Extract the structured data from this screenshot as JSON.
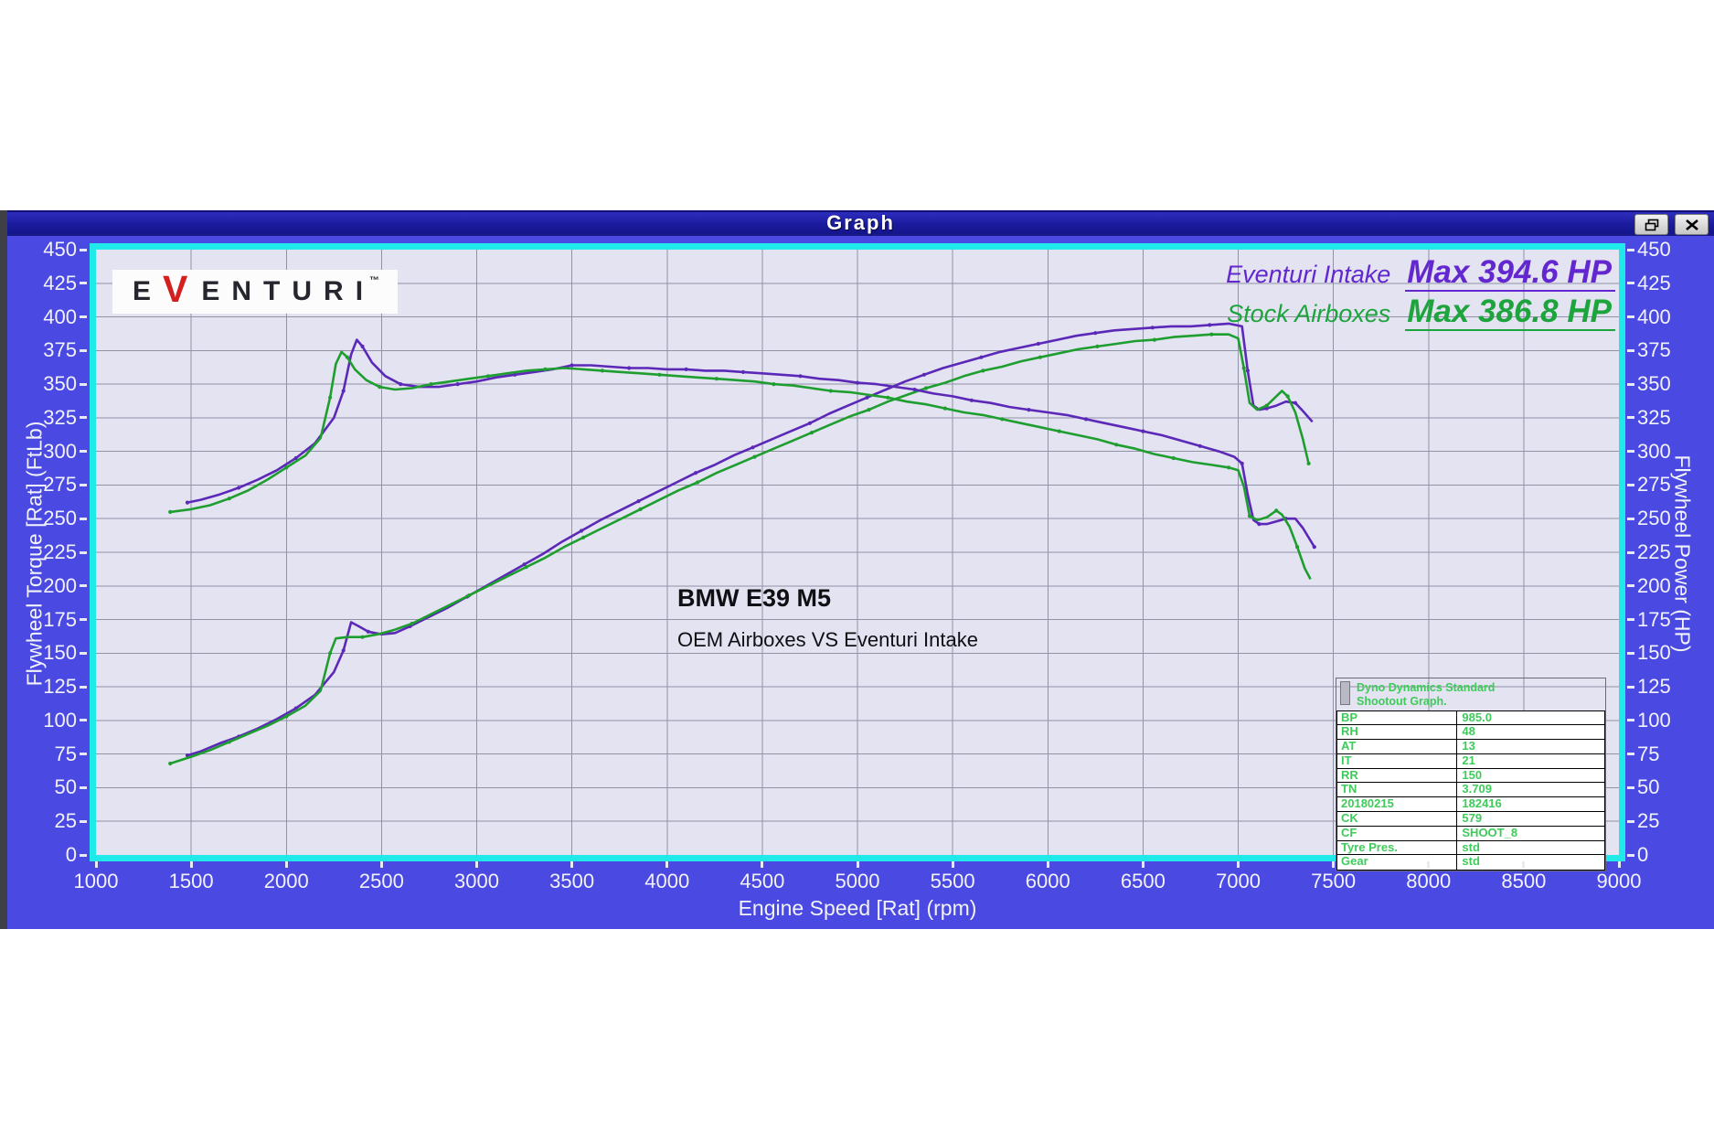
{
  "window": {
    "title": "Graph"
  },
  "logo": {
    "prefix": "E",
    "v": "V",
    "suffix": "ENTURI",
    "tm": "™"
  },
  "legend": [
    {
      "name": "Eventuri Intake",
      "max": "Max 394.6 HP",
      "color": "#6227cf"
    },
    {
      "name": "Stock Airboxes",
      "max": "Max 386.8 HP",
      "color": "#1da43c"
    }
  ],
  "annotations": {
    "model": "BMW E39 M5",
    "comparison": "OEM Airboxes VS Eventuri Intake"
  },
  "info_table": {
    "header_lines": [
      "Dyno Dynamics Standard",
      "Shootout Graph."
    ],
    "rows": [
      {
        "label": "BP",
        "value": "985.0"
      },
      {
        "label": "RH",
        "value": "48"
      },
      {
        "label": "AT",
        "value": "13"
      },
      {
        "label": "IT",
        "value": "21"
      },
      {
        "label": "RR",
        "value": "150"
      },
      {
        "label": "TN",
        "value": "3.709"
      },
      {
        "label": "20180215",
        "value": "182416"
      },
      {
        "label": "CK",
        "value": "579"
      },
      {
        "label": "CF",
        "value": "SHOOT_8"
      },
      {
        "label": "Tyre Pres.",
        "value": "std"
      },
      {
        "label": "Gear",
        "value": "std"
      }
    ]
  },
  "chart_data": {
    "type": "line",
    "x_label": "Engine Speed [Rat] (rpm)",
    "y_left_label": "Flywheel Torque [Rat] (FtLb)",
    "y_right_label": "Flywheel Power (HP)",
    "x_range": [
      1000,
      9000
    ],
    "y_range": [
      0,
      450
    ],
    "x_ticks": [
      "1000",
      "1500",
      "2000",
      "2500",
      "3000",
      "3500",
      "4000",
      "4500",
      "5000",
      "5500",
      "6000",
      "6500",
      "7000",
      "7500",
      "8000",
      "8500",
      "9000"
    ],
    "y_ticks": [
      "0",
      "25",
      "50",
      "75",
      "100",
      "125",
      "150",
      "175",
      "200",
      "225",
      "250",
      "275",
      "300",
      "325",
      "350",
      "375",
      "400",
      "425",
      "450"
    ],
    "grid": true,
    "grid_color": "#9292a6",
    "plot_bg": "#e3e3f1",
    "frame_color": "#20e9e9",
    "colors": {
      "eventuri": "#5b28b8",
      "stock": "#1f9e30"
    },
    "eventuri_max_hp": 394.6,
    "stock_max_hp": 386.8,
    "series": [
      {
        "name": "Eventuri Intake Flywheel Power (HP)",
        "color_key": "eventuri",
        "points": [
          [
            1480,
            74
          ],
          [
            1550,
            77
          ],
          [
            1650,
            83
          ],
          [
            1750,
            88
          ],
          [
            1850,
            94
          ],
          [
            1950,
            101
          ],
          [
            2050,
            109
          ],
          [
            2150,
            119
          ],
          [
            2250,
            136
          ],
          [
            2300,
            152
          ],
          [
            2340,
            173
          ],
          [
            2380,
            170
          ],
          [
            2430,
            166
          ],
          [
            2500,
            164
          ],
          [
            2570,
            165
          ],
          [
            2650,
            170
          ],
          [
            2750,
            177
          ],
          [
            2850,
            184
          ],
          [
            2950,
            192
          ],
          [
            3050,
            200
          ],
          [
            3150,
            208
          ],
          [
            3250,
            216
          ],
          [
            3350,
            224
          ],
          [
            3450,
            233
          ],
          [
            3550,
            241
          ],
          [
            3650,
            249
          ],
          [
            3750,
            256
          ],
          [
            3850,
            263
          ],
          [
            3950,
            270
          ],
          [
            4050,
            277
          ],
          [
            4150,
            284
          ],
          [
            4250,
            290
          ],
          [
            4350,
            297
          ],
          [
            4450,
            303
          ],
          [
            4550,
            309
          ],
          [
            4650,
            315
          ],
          [
            4750,
            321
          ],
          [
            4850,
            328
          ],
          [
            4950,
            334
          ],
          [
            5050,
            340
          ],
          [
            5150,
            346
          ],
          [
            5250,
            352
          ],
          [
            5350,
            357
          ],
          [
            5450,
            362
          ],
          [
            5550,
            366
          ],
          [
            5650,
            370
          ],
          [
            5750,
            374
          ],
          [
            5850,
            377
          ],
          [
            5950,
            380
          ],
          [
            6050,
            383
          ],
          [
            6150,
            386
          ],
          [
            6250,
            388
          ],
          [
            6350,
            390
          ],
          [
            6450,
            391
          ],
          [
            6550,
            392
          ],
          [
            6650,
            393
          ],
          [
            6750,
            393
          ],
          [
            6850,
            394
          ],
          [
            6950,
            395
          ],
          [
            7020,
            393
          ],
          [
            7050,
            360
          ],
          [
            7080,
            334
          ],
          [
            7110,
            331
          ],
          [
            7150,
            332
          ],
          [
            7200,
            334
          ],
          [
            7250,
            337
          ],
          [
            7300,
            336
          ],
          [
            7340,
            330
          ],
          [
            7390,
            322
          ]
        ]
      },
      {
        "name": "Stock Airboxes Flywheel Power (HP)",
        "color_key": "stock",
        "points": [
          [
            1390,
            68
          ],
          [
            1500,
            73
          ],
          [
            1600,
            78
          ],
          [
            1700,
            84
          ],
          [
            1800,
            90
          ],
          [
            1900,
            96
          ],
          [
            2000,
            103
          ],
          [
            2100,
            111
          ],
          [
            2180,
            122
          ],
          [
            2230,
            150
          ],
          [
            2260,
            161
          ],
          [
            2320,
            162
          ],
          [
            2400,
            162
          ],
          [
            2480,
            164
          ],
          [
            2560,
            167
          ],
          [
            2660,
            172
          ],
          [
            2760,
            179
          ],
          [
            2860,
            186
          ],
          [
            2960,
            193
          ],
          [
            3060,
            200
          ],
          [
            3160,
            207
          ],
          [
            3260,
            214
          ],
          [
            3360,
            221
          ],
          [
            3460,
            229
          ],
          [
            3560,
            236
          ],
          [
            3660,
            243
          ],
          [
            3760,
            250
          ],
          [
            3860,
            257
          ],
          [
            3960,
            264
          ],
          [
            4060,
            271
          ],
          [
            4160,
            277
          ],
          [
            4260,
            284
          ],
          [
            4360,
            290
          ],
          [
            4460,
            296
          ],
          [
            4560,
            302
          ],
          [
            4660,
            308
          ],
          [
            4760,
            314
          ],
          [
            4860,
            320
          ],
          [
            4960,
            326
          ],
          [
            5060,
            331
          ],
          [
            5160,
            337
          ],
          [
            5260,
            342
          ],
          [
            5360,
            347
          ],
          [
            5460,
            351
          ],
          [
            5560,
            356
          ],
          [
            5660,
            360
          ],
          [
            5760,
            363
          ],
          [
            5860,
            367
          ],
          [
            5960,
            370
          ],
          [
            6060,
            373
          ],
          [
            6160,
            376
          ],
          [
            6260,
            378
          ],
          [
            6360,
            380
          ],
          [
            6460,
            382
          ],
          [
            6560,
            383
          ],
          [
            6660,
            385
          ],
          [
            6760,
            386
          ],
          [
            6860,
            387
          ],
          [
            6950,
            387
          ],
          [
            7000,
            384
          ],
          [
            7030,
            362
          ],
          [
            7060,
            336
          ],
          [
            7100,
            331
          ],
          [
            7150,
            334
          ],
          [
            7200,
            341
          ],
          [
            7230,
            345
          ],
          [
            7260,
            341
          ],
          [
            7300,
            329
          ],
          [
            7340,
            309
          ],
          [
            7370,
            291
          ]
        ]
      },
      {
        "name": "Eventuri Intake Flywheel Torque (FtLb)",
        "color_key": "eventuri",
        "points": [
          [
            1480,
            262
          ],
          [
            1550,
            264
          ],
          [
            1650,
            268
          ],
          [
            1750,
            273
          ],
          [
            1850,
            279
          ],
          [
            1950,
            286
          ],
          [
            2050,
            295
          ],
          [
            2150,
            306
          ],
          [
            2250,
            325
          ],
          [
            2300,
            345
          ],
          [
            2340,
            372
          ],
          [
            2370,
            383
          ],
          [
            2400,
            378
          ],
          [
            2450,
            366
          ],
          [
            2520,
            356
          ],
          [
            2600,
            350
          ],
          [
            2700,
            348
          ],
          [
            2800,
            348
          ],
          [
            2900,
            350
          ],
          [
            3000,
            352
          ],
          [
            3100,
            355
          ],
          [
            3200,
            357
          ],
          [
            3300,
            359
          ],
          [
            3400,
            361
          ],
          [
            3500,
            364
          ],
          [
            3600,
            364
          ],
          [
            3700,
            363
          ],
          [
            3800,
            362
          ],
          [
            3900,
            362
          ],
          [
            4000,
            361
          ],
          [
            4100,
            361
          ],
          [
            4200,
            360
          ],
          [
            4300,
            360
          ],
          [
            4400,
            359
          ],
          [
            4500,
            358
          ],
          [
            4600,
            357
          ],
          [
            4700,
            356
          ],
          [
            4800,
            354
          ],
          [
            4900,
            353
          ],
          [
            5000,
            351
          ],
          [
            5100,
            350
          ],
          [
            5200,
            348
          ],
          [
            5300,
            346
          ],
          [
            5400,
            343
          ],
          [
            5500,
            341
          ],
          [
            5600,
            338
          ],
          [
            5700,
            336
          ],
          [
            5800,
            333
          ],
          [
            5900,
            331
          ],
          [
            6000,
            329
          ],
          [
            6100,
            327
          ],
          [
            6200,
            324
          ],
          [
            6300,
            321
          ],
          [
            6400,
            318
          ],
          [
            6500,
            315
          ],
          [
            6600,
            312
          ],
          [
            6700,
            308
          ],
          [
            6800,
            304
          ],
          [
            6900,
            300
          ],
          [
            6980,
            296
          ],
          [
            7020,
            291
          ],
          [
            7050,
            268
          ],
          [
            7080,
            249
          ],
          [
            7110,
            246
          ],
          [
            7150,
            246
          ],
          [
            7200,
            248
          ],
          [
            7250,
            250
          ],
          [
            7300,
            250
          ],
          [
            7340,
            243
          ],
          [
            7400,
            229
          ]
        ]
      },
      {
        "name": "Stock Airboxes Flywheel Torque (FtLb)",
        "color_key": "stock",
        "points": [
          [
            1390,
            255
          ],
          [
            1500,
            257
          ],
          [
            1600,
            260
          ],
          [
            1700,
            265
          ],
          [
            1800,
            271
          ],
          [
            1900,
            279
          ],
          [
            2000,
            288
          ],
          [
            2100,
            297
          ],
          [
            2180,
            310
          ],
          [
            2230,
            340
          ],
          [
            2260,
            365
          ],
          [
            2290,
            374
          ],
          [
            2320,
            370
          ],
          [
            2360,
            361
          ],
          [
            2420,
            353
          ],
          [
            2490,
            348
          ],
          [
            2570,
            346
          ],
          [
            2660,
            347
          ],
          [
            2760,
            350
          ],
          [
            2860,
            352
          ],
          [
            2960,
            354
          ],
          [
            3060,
            356
          ],
          [
            3160,
            358
          ],
          [
            3260,
            360
          ],
          [
            3360,
            361
          ],
          [
            3460,
            362
          ],
          [
            3560,
            361
          ],
          [
            3660,
            360
          ],
          [
            3760,
            359
          ],
          [
            3860,
            358
          ],
          [
            3960,
            357
          ],
          [
            4060,
            356
          ],
          [
            4160,
            355
          ],
          [
            4260,
            354
          ],
          [
            4360,
            353
          ],
          [
            4460,
            352
          ],
          [
            4560,
            350
          ],
          [
            4660,
            349
          ],
          [
            4760,
            347
          ],
          [
            4860,
            345
          ],
          [
            4960,
            344
          ],
          [
            5060,
            342
          ],
          [
            5160,
            340
          ],
          [
            5260,
            337
          ],
          [
            5360,
            335
          ],
          [
            5460,
            332
          ],
          [
            5560,
            329
          ],
          [
            5660,
            327
          ],
          [
            5760,
            324
          ],
          [
            5860,
            321
          ],
          [
            5960,
            318
          ],
          [
            6060,
            315
          ],
          [
            6160,
            312
          ],
          [
            6260,
            309
          ],
          [
            6360,
            305
          ],
          [
            6460,
            302
          ],
          [
            6560,
            298
          ],
          [
            6660,
            295
          ],
          [
            6760,
            292
          ],
          [
            6860,
            290
          ],
          [
            6950,
            288
          ],
          [
            7000,
            286
          ],
          [
            7030,
            274
          ],
          [
            7060,
            252
          ],
          [
            7100,
            249
          ],
          [
            7150,
            251
          ],
          [
            7200,
            256
          ],
          [
            7230,
            253
          ],
          [
            7270,
            244
          ],
          [
            7310,
            229
          ],
          [
            7350,
            213
          ],
          [
            7380,
            205
          ]
        ]
      }
    ]
  }
}
